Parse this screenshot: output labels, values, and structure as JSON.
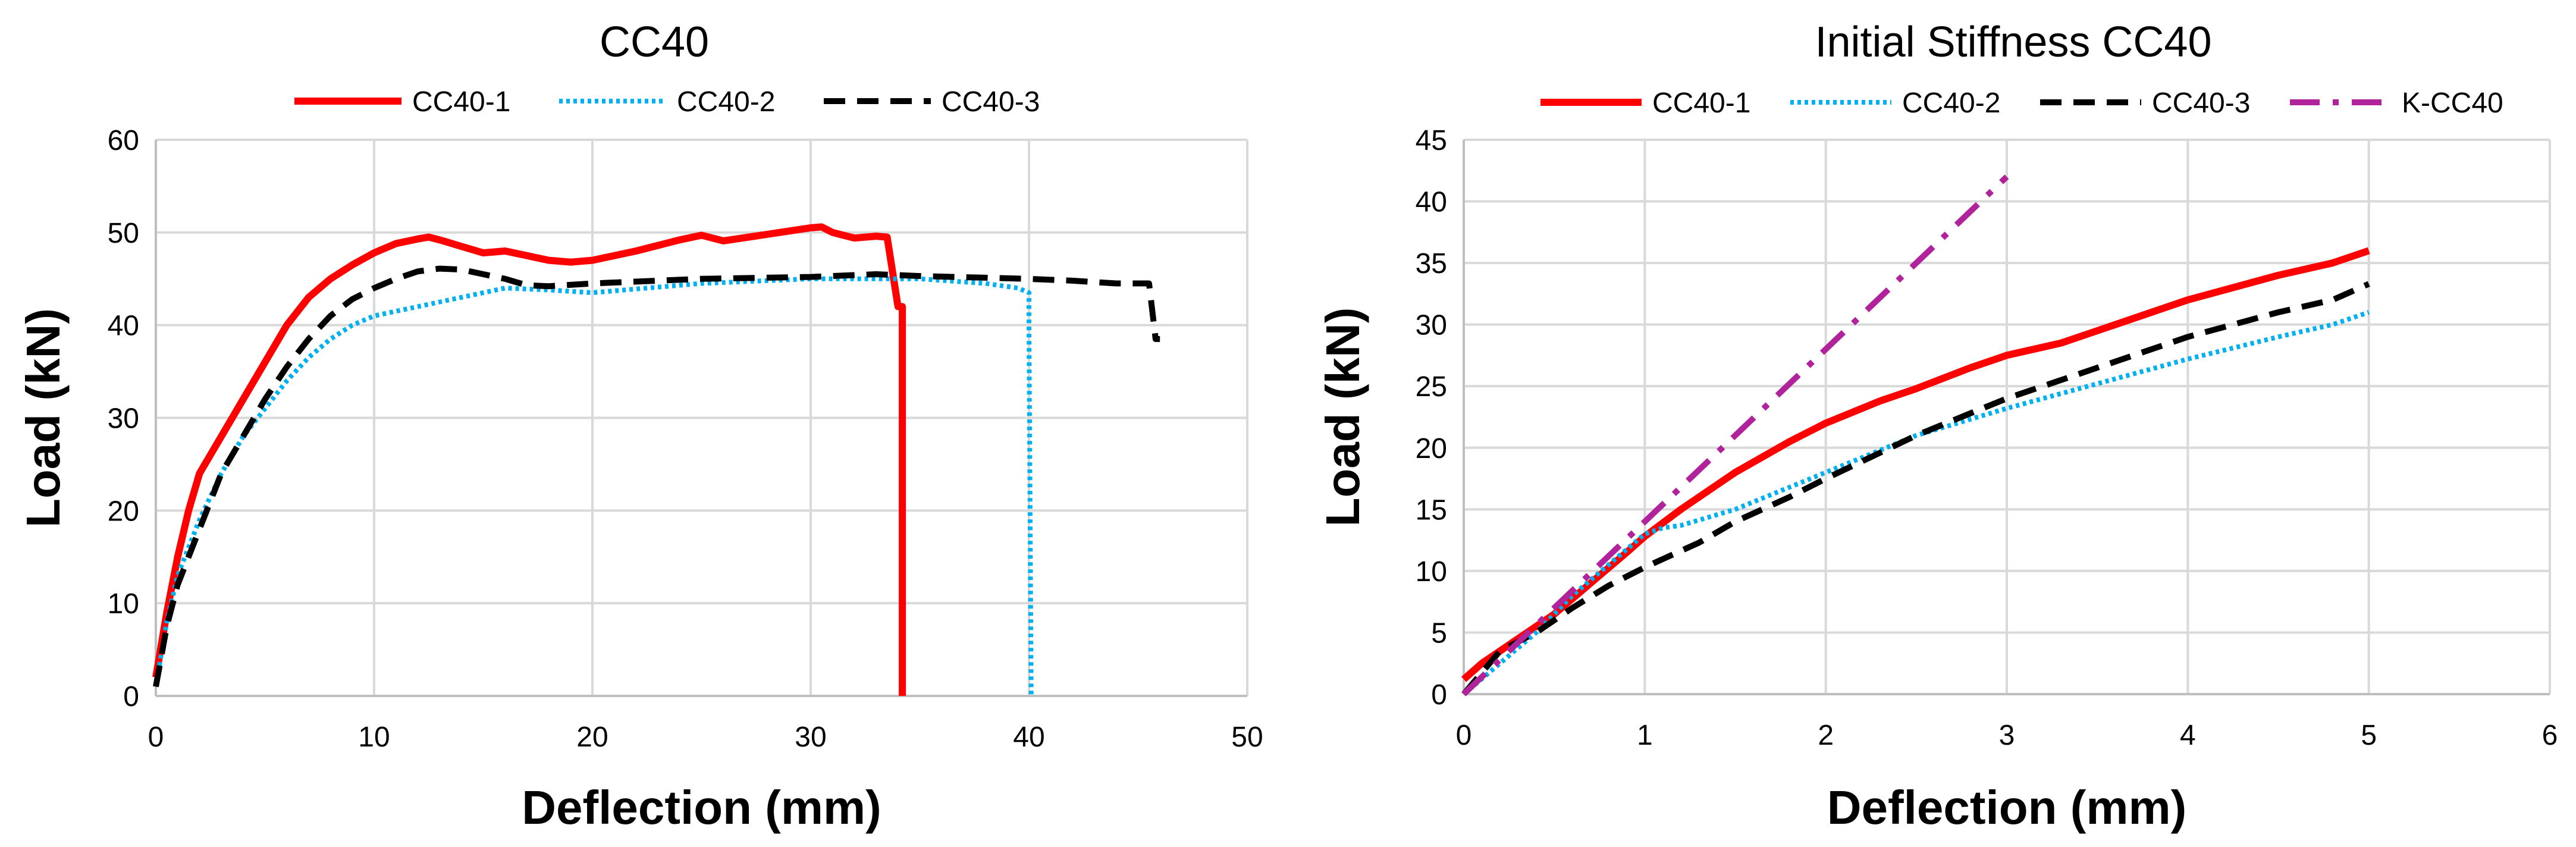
{
  "chart_data": [
    {
      "type": "line",
      "title": "CC40",
      "xlabel": "Deflection (mm)",
      "ylabel": "Load (kN)",
      "xlim": [
        0,
        50
      ],
      "ylim": [
        0,
        60
      ],
      "xticks": [
        "0",
        "10",
        "20",
        "30",
        "40",
        "50"
      ],
      "yticks": [
        "0",
        "10",
        "20",
        "30",
        "40",
        "50",
        "60"
      ],
      "legend_position": "top-center",
      "grid": true,
      "series": [
        {
          "name": "CC40-1",
          "color": "#ff0000",
          "style": "solid",
          "x": [
            0,
            0.5,
            1,
            1.5,
            2,
            3,
            4,
            5,
            6,
            7,
            8,
            9,
            10,
            11,
            12,
            12.5,
            13,
            14,
            15,
            16,
            18,
            19,
            20,
            22,
            24,
            25,
            26,
            28,
            30,
            30.5,
            31,
            32,
            33,
            33.5,
            33.8,
            34,
            34.2,
            34.2
          ],
          "y": [
            2,
            9,
            15,
            20,
            24,
            28,
            32,
            36,
            40,
            43,
            45,
            46.5,
            47.8,
            48.8,
            49.3,
            49.5,
            49.2,
            48.5,
            47.8,
            48,
            47,
            46.8,
            47,
            48,
            49.2,
            49.7,
            49.1,
            49.8,
            50.5,
            50.6,
            50,
            49.4,
            49.6,
            49.5,
            45,
            42,
            42,
            0
          ]
        },
        {
          "name": "CC40-2",
          "color": "#00b0f0",
          "style": "dotted",
          "x": [
            0,
            0.5,
            1,
            2,
            3,
            4,
            5,
            6,
            7,
            8,
            9,
            10,
            12,
            14,
            16,
            18,
            20,
            25,
            30,
            35,
            38,
            39.5,
            40,
            40,
            40.1
          ],
          "y": [
            1,
            8,
            13,
            19,
            24,
            28,
            31,
            34,
            36.5,
            38.5,
            40,
            41,
            42,
            43,
            44,
            43.8,
            43.5,
            44.5,
            45,
            45,
            44.5,
            44,
            43.5,
            40,
            0
          ]
        },
        {
          "name": "CC40-3",
          "color": "#000000",
          "style": "dashed",
          "x": [
            0,
            0.5,
            1,
            2,
            3,
            4,
            5,
            6,
            7,
            8,
            9,
            10,
            11,
            12,
            13,
            14,
            15,
            16,
            17,
            18,
            20,
            25,
            30,
            33,
            35,
            40,
            42,
            44,
            45.5,
            45.8,
            46
          ],
          "y": [
            1,
            7.5,
            12,
            18,
            24,
            28,
            32,
            35.5,
            38.5,
            41,
            42.8,
            44,
            45,
            45.8,
            46.1,
            46,
            45.5,
            45,
            44.3,
            44.2,
            44.5,
            45,
            45.2,
            45.5,
            45.3,
            45,
            44.8,
            44.5,
            44.5,
            38.5,
            38.5
          ]
        }
      ]
    },
    {
      "type": "line",
      "title": "Initial Stiffness CC40",
      "xlabel": "Deflection (mm)",
      "ylabel": "Load (kN)",
      "xlim": [
        0,
        6
      ],
      "ylim": [
        0,
        45
      ],
      "xticks": [
        "0",
        "1",
        "2",
        "3",
        "4",
        "5",
        "6"
      ],
      "yticks": [
        "0",
        "5",
        "10",
        "15",
        "20",
        "25",
        "30",
        "35",
        "40",
        "45"
      ],
      "legend_position": "top-center",
      "grid": true,
      "series": [
        {
          "name": "CC40-1",
          "color": "#ff0000",
          "style": "solid",
          "x": [
            0,
            0.1,
            0.2,
            0.3,
            0.5,
            0.7,
            0.9,
            1,
            1.2,
            1.5,
            1.8,
            2,
            2.3,
            2.5,
            2.8,
            3,
            3.3,
            3.5,
            4,
            4.5,
            4.8,
            5
          ],
          "y": [
            1.2,
            2.5,
            3.5,
            4.5,
            6.5,
            9,
            11.5,
            12.8,
            15,
            18,
            20.5,
            22,
            23.8,
            24.8,
            26.5,
            27.5,
            28.5,
            29.5,
            32,
            34,
            35,
            36
          ]
        },
        {
          "name": "CC40-2",
          "color": "#00b0f0",
          "style": "dotted",
          "x": [
            0,
            0.2,
            0.4,
            0.6,
            0.8,
            1,
            1.1,
            1.2,
            1.5,
            2,
            2.5,
            3,
            3.5,
            4,
            4.5,
            4.8,
            5
          ],
          "y": [
            0,
            2.5,
            5,
            8,
            10.5,
            13,
            13.5,
            13.7,
            15,
            18,
            21,
            23.2,
            25.2,
            27.2,
            29,
            30,
            31
          ]
        },
        {
          "name": "CC40-3",
          "color": "#000000",
          "style": "dashed",
          "x": [
            0,
            0.2,
            0.4,
            0.6,
            0.8,
            1,
            1.3,
            1.5,
            1.8,
            2,
            2.5,
            3,
            3.5,
            4,
            4.5,
            4.8,
            5
          ],
          "y": [
            0,
            3.5,
            5,
            7,
            8.8,
            10.3,
            12.3,
            14,
            16,
            17.5,
            21,
            24,
            26.5,
            29,
            31,
            32,
            33.3
          ]
        },
        {
          "name": "K-CC40",
          "color": "#b0239a",
          "style": "dashdot",
          "x": [
            0,
            3
          ],
          "y": [
            0,
            42
          ]
        }
      ]
    }
  ]
}
